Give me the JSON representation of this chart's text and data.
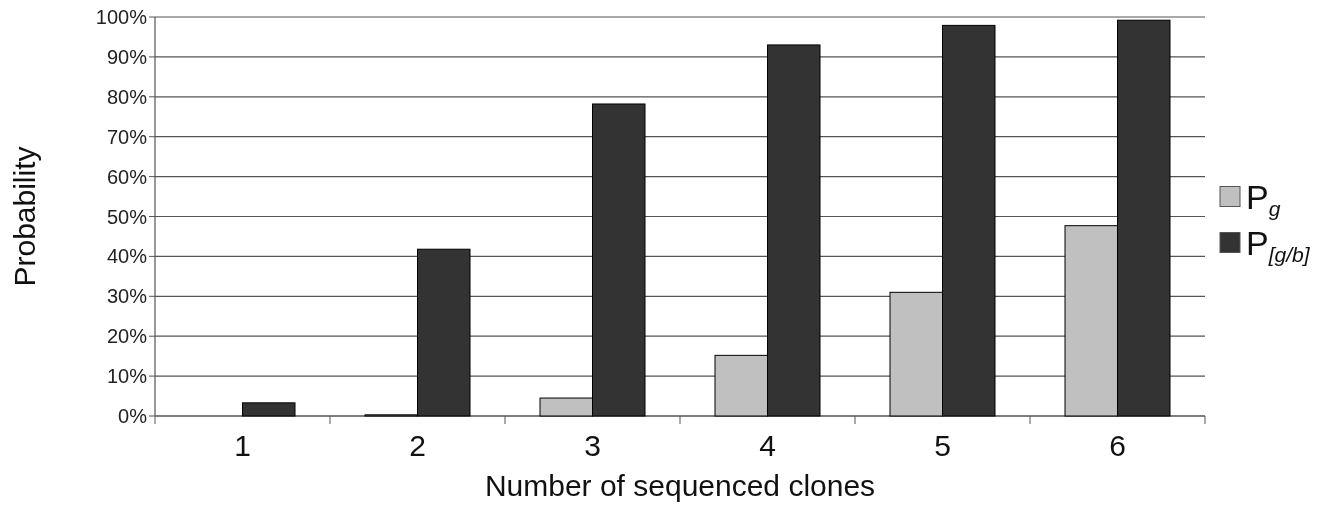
{
  "chart_data": {
    "type": "bar",
    "xlabel": "Number of sequenced clones",
    "ylabel": "Probability",
    "categories": [
      "1",
      "2",
      "3",
      "4",
      "5",
      "6"
    ],
    "series": [
      {
        "name": "P$_{g}$",
        "color": "#c0c0c0",
        "values": [
          0,
          0.3,
          4.5,
          15.2,
          31.0,
          47.7
        ]
      },
      {
        "name": "P$_{[g/b]}$",
        "color": "#333333",
        "values": [
          3.3,
          41.8,
          78.2,
          93.0,
          97.9,
          99.2
        ]
      }
    ],
    "ylim": [
      0,
      100
    ],
    "yticks": [
      {
        "value": 0,
        "label": "0%"
      },
      {
        "value": 10,
        "label": "10%"
      },
      {
        "value": 20,
        "label": "20%"
      },
      {
        "value": 30,
        "label": "30%"
      },
      {
        "value": 40,
        "label": "40%"
      },
      {
        "value": 50,
        "label": "50%"
      },
      {
        "value": 60,
        "label": "60%"
      },
      {
        "value": 70,
        "label": "70%"
      },
      {
        "value": 80,
        "label": "80%"
      },
      {
        "value": 90,
        "label": "90%"
      },
      {
        "value": 100,
        "label": "100%"
      }
    ],
    "grid": "y",
    "legend": "right"
  }
}
